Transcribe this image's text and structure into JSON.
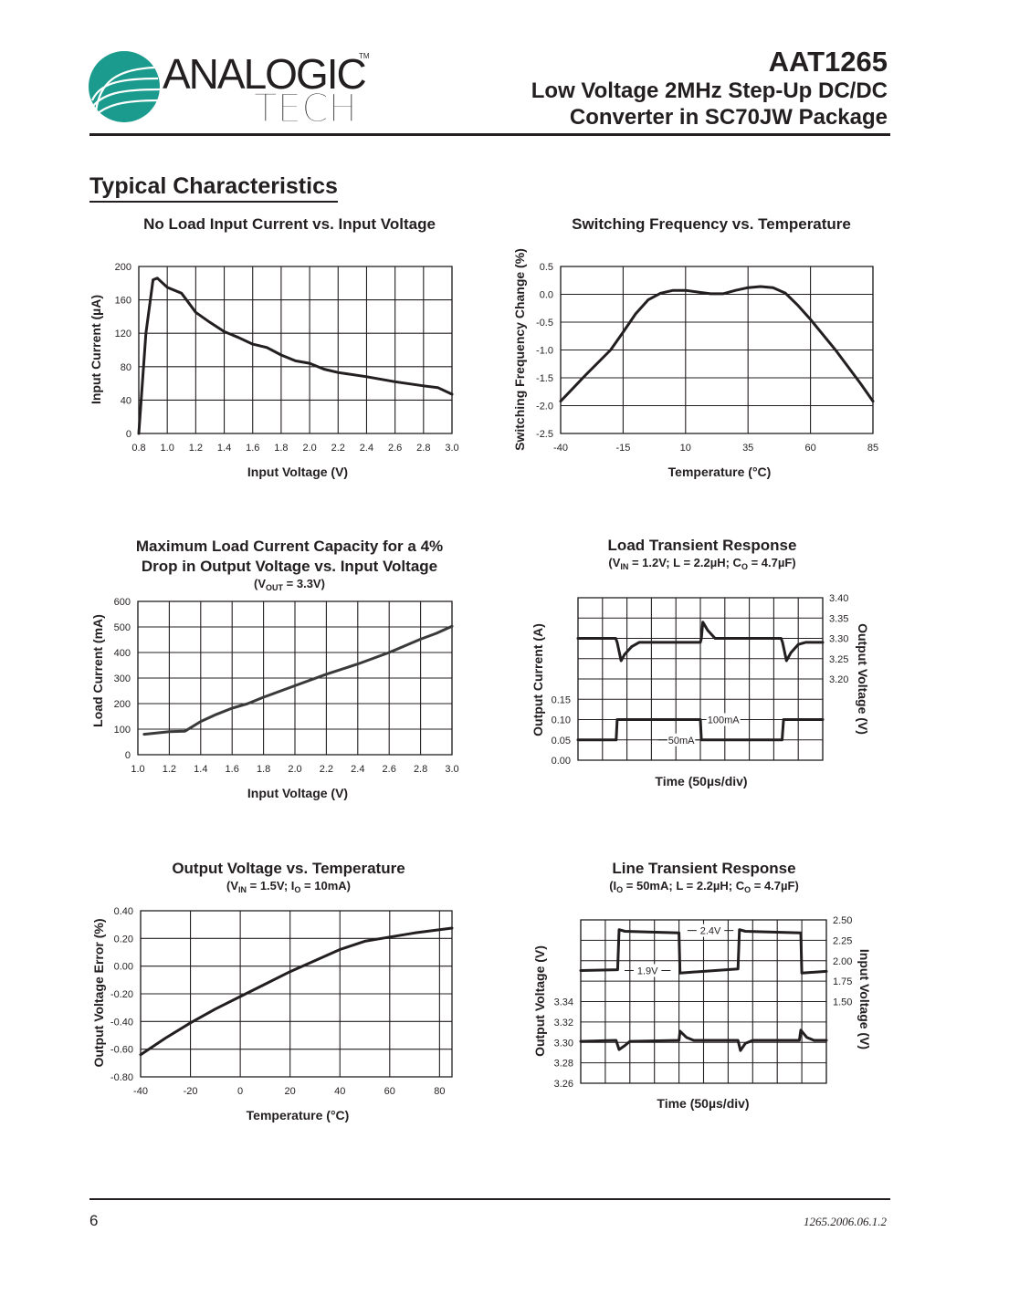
{
  "header": {
    "logo_text": [
      "ANALOGIC",
      "TECH",
      "TM"
    ],
    "logo_color": "#1b9b8d",
    "part_number": "AAT1265",
    "subtitle_line1": "Low Voltage 2MHz Step-Up DC/DC",
    "subtitle_line2": "Converter in SC70JW Package"
  },
  "section_title": "Typical Characteristics",
  "footer": {
    "page_number": "6",
    "doc_id": "1265.2006.06.1.2"
  },
  "chart_data": [
    {
      "type": "line",
      "title": [
        "No Load Input Current vs. Input Voltage"
      ],
      "subtitle": [],
      "x": {
        "label": "Input Voltage (V)",
        "lim": [
          0.8,
          3.0
        ],
        "ticks": [
          0.8,
          1.0,
          1.2,
          1.4,
          1.6,
          1.8,
          2.0,
          2.2,
          2.4,
          2.6,
          2.8,
          3.0
        ],
        "tick_labels": [
          "0.8",
          "1.0",
          "1.2",
          "1.4",
          "1.6",
          "1.8",
          "2.0",
          "2.2",
          "2.4",
          "2.6",
          "2.8",
          "3.0"
        ]
      },
      "axes": {
        "left": {
          "label": "Input Current (µA)",
          "lim": [
            0,
            200
          ],
          "ticks": [
            0,
            40,
            80,
            120,
            160,
            200
          ],
          "tick_labels": [
            "0",
            "40",
            "80",
            "120",
            "160",
            "200"
          ]
        }
      },
      "grid": true,
      "series": [
        {
          "axis": "left",
          "points": [
            [
              0.8,
              0
            ],
            [
              0.85,
              120
            ],
            [
              0.9,
              184
            ],
            [
              0.93,
              186
            ],
            [
              1.0,
              175
            ],
            [
              1.1,
              168
            ],
            [
              1.2,
              145
            ],
            [
              1.3,
              133
            ],
            [
              1.4,
              122
            ],
            [
              1.5,
              115
            ],
            [
              1.6,
              107
            ],
            [
              1.7,
              103
            ],
            [
              1.8,
              94
            ],
            [
              1.9,
              87
            ],
            [
              2.0,
              84
            ],
            [
              2.1,
              77
            ],
            [
              2.2,
              73
            ],
            [
              2.4,
              68
            ],
            [
              2.6,
              62
            ],
            [
              2.8,
              57
            ],
            [
              2.9,
              55
            ],
            [
              3.0,
              47
            ]
          ]
        }
      ],
      "annotations": []
    },
    {
      "type": "line",
      "title": [
        "Switching Frequency vs. Temperature"
      ],
      "subtitle": [],
      "x": {
        "label": "Temperature (°C)",
        "lim": [
          -40,
          85
        ],
        "ticks": [
          -40,
          -15,
          10,
          35,
          60,
          85
        ],
        "tick_labels": [
          "-40",
          "-15",
          "10",
          "35",
          "60",
          "85"
        ]
      },
      "axes": {
        "left": {
          "label": "Switching Frequency Change (%)",
          "lim": [
            -2.5,
            0.5
          ],
          "ticks": [
            -2.5,
            -2.0,
            -1.5,
            -1.0,
            -0.5,
            0.0,
            0.5
          ],
          "tick_labels": [
            "-2.5",
            "-2.0",
            "-1.5",
            "-1.0",
            "-0.5",
            "0.0",
            "0.5"
          ]
        }
      },
      "grid": true,
      "series": [
        {
          "axis": "left",
          "points": [
            [
              -40,
              -1.92
            ],
            [
              -30,
              -1.45
            ],
            [
              -20,
              -1.0
            ],
            [
              -15,
              -0.68
            ],
            [
              -10,
              -0.35
            ],
            [
              -5,
              -0.1
            ],
            [
              0,
              0.02
            ],
            [
              5,
              0.07
            ],
            [
              10,
              0.07
            ],
            [
              15,
              0.04
            ],
            [
              20,
              0.01
            ],
            [
              25,
              0.01
            ],
            [
              30,
              0.07
            ],
            [
              35,
              0.12
            ],
            [
              40,
              0.14
            ],
            [
              45,
              0.12
            ],
            [
              50,
              0.02
            ],
            [
              55,
              -0.2
            ],
            [
              60,
              -0.45
            ],
            [
              70,
              -1.0
            ],
            [
              80,
              -1.6
            ],
            [
              85,
              -1.92
            ]
          ]
        }
      ],
      "annotations": []
    },
    {
      "type": "line",
      "title": [
        "Maximum Load Current Capacity for a 4%",
        "Drop in Output Voltage vs. Input Voltage"
      ],
      "subtitle": [
        {
          "t": "(V"
        },
        {
          "sub": "OUT"
        },
        {
          "t": " = 3.3V)"
        }
      ],
      "x": {
        "label": "Input Voltage (V)",
        "lim": [
          1.0,
          3.0
        ],
        "ticks": [
          1.0,
          1.2,
          1.4,
          1.6,
          1.8,
          2.0,
          2.2,
          2.4,
          2.6,
          2.8,
          3.0
        ],
        "tick_labels": [
          "1.0",
          "1.2",
          "1.4",
          "1.6",
          "1.8",
          "2.0",
          "2.2",
          "2.4",
          "2.6",
          "2.8",
          "3.0"
        ]
      },
      "axes": {
        "left": {
          "label": "Load Current (mA)",
          "lim": [
            0,
            600
          ],
          "ticks": [
            0,
            100,
            200,
            300,
            400,
            500,
            600
          ],
          "tick_labels": [
            "0",
            "100",
            "200",
            "300",
            "400",
            "500",
            "600"
          ]
        }
      },
      "grid": true,
      "series": [
        {
          "axis": "left",
          "color": "#3a3a3a",
          "points": [
            [
              1.04,
              80
            ],
            [
              1.2,
              90
            ],
            [
              1.3,
              92
            ],
            [
              1.4,
              130
            ],
            [
              1.5,
              158
            ],
            [
              1.6,
              182
            ],
            [
              1.7,
              200
            ],
            [
              1.8,
              225
            ],
            [
              2.0,
              270
            ],
            [
              2.2,
              315
            ],
            [
              2.4,
              355
            ],
            [
              2.6,
              400
            ],
            [
              2.8,
              452
            ],
            [
              2.9,
              475
            ],
            [
              3.0,
              503
            ]
          ]
        }
      ],
      "annotations": []
    },
    {
      "type": "line",
      "title": [
        "Load Transient Response"
      ],
      "subtitle": [
        {
          "t": "(V"
        },
        {
          "sub": "IN"
        },
        {
          "t": " = 1.2V; L = 2.2µH; C"
        },
        {
          "sub": "O"
        },
        {
          "t": " = 4.7µF)"
        }
      ],
      "x": {
        "label": "Time (50µs/div)",
        "lim": [
          0,
          500
        ],
        "ticks": [],
        "tick_labels": []
      },
      "axes": {
        "left": {
          "label": "Output Current (A)",
          "lim": [
            0,
            0.4
          ],
          "ticks": [
            0.0,
            0.05,
            0.1,
            0.15
          ],
          "tick_labels": [
            "0.00",
            "0.05",
            "0.10",
            "0.15"
          ]
        },
        "right": {
          "label": "Output Voltage (V)",
          "lim": [
            3.0,
            3.4
          ],
          "ticks": [
            3.2,
            3.25,
            3.3,
            3.35,
            3.4
          ],
          "tick_labels": [
            "3.20",
            "3.25",
            "3.30",
            "3.35",
            "3.40"
          ]
        }
      },
      "grid": {
        "x_divisions": 10,
        "y_divisions": 8
      },
      "series": [
        {
          "axis": "right",
          "points": [
            [
              0,
              3.3
            ],
            [
              77,
              3.3
            ],
            [
              80,
              3.29
            ],
            [
              88,
              3.245
            ],
            [
              95,
              3.26
            ],
            [
              110,
              3.28
            ],
            [
              125,
              3.29
            ],
            [
              250,
              3.29
            ],
            [
              252,
              3.3
            ],
            [
              255,
              3.34
            ],
            [
              265,
              3.32
            ],
            [
              280,
              3.3
            ],
            [
              415,
              3.3
            ],
            [
              418,
              3.29
            ],
            [
              426,
              3.245
            ],
            [
              435,
              3.265
            ],
            [
              450,
              3.285
            ],
            [
              465,
              3.29
            ],
            [
              500,
              3.29
            ]
          ]
        },
        {
          "axis": "left",
          "points": [
            [
              0,
              0.05
            ],
            [
              78,
              0.05
            ],
            [
              80,
              0.1
            ],
            [
              250,
              0.1
            ],
            [
              252,
              0.05
            ],
            [
              417,
              0.05
            ],
            [
              420,
              0.1
            ],
            [
              500,
              0.1
            ]
          ]
        }
      ],
      "annotations": [
        {
          "text": "100mA",
          "x": 297,
          "y": 0.1,
          "axis": "left"
        },
        {
          "text": "50mA",
          "x": 211,
          "y": 0.05,
          "axis": "left"
        }
      ]
    },
    {
      "type": "line",
      "title": [
        "Output Voltage vs. Temperature"
      ],
      "subtitle": [
        {
          "t": "(V"
        },
        {
          "sub": "IN"
        },
        {
          "t": " = 1.5V; I"
        },
        {
          "sub": "O"
        },
        {
          "t": " = 10mA)"
        }
      ],
      "x": {
        "label": "Temperature (°C)",
        "lim": [
          -40,
          85
        ],
        "ticks": [
          -40,
          -20,
          0,
          20,
          40,
          60,
          80
        ],
        "tick_labels": [
          "-40",
          "-20",
          "0",
          "20",
          "40",
          "60",
          "80"
        ]
      },
      "axes": {
        "left": {
          "label": "Output Voltage Error (%)",
          "lim": [
            -0.8,
            0.4
          ],
          "ticks": [
            -0.8,
            -0.6,
            -0.4,
            -0.2,
            0.0,
            0.2,
            0.4
          ],
          "tick_labels": [
            "-0.80",
            "-0.60",
            "-0.40",
            "-0.20",
            "0.00",
            "0.20",
            "0.40"
          ]
        }
      },
      "grid": true,
      "series": [
        {
          "axis": "left",
          "points": [
            [
              -40,
              -0.64
            ],
            [
              -30,
              -0.52
            ],
            [
              -20,
              -0.41
            ],
            [
              -10,
              -0.31
            ],
            [
              0,
              -0.22
            ],
            [
              10,
              -0.13
            ],
            [
              20,
              -0.04
            ],
            [
              30,
              0.04
            ],
            [
              40,
              0.12
            ],
            [
              50,
              0.18
            ],
            [
              60,
              0.21
            ],
            [
              70,
              0.24
            ],
            [
              85,
              0.275
            ]
          ]
        }
      ],
      "annotations": []
    },
    {
      "type": "line",
      "title": [
        "Line Transient Response"
      ],
      "subtitle": [
        {
          "t": "(I"
        },
        {
          "sub": "O"
        },
        {
          "t": " = 50mA; L = 2.2µH; C"
        },
        {
          "sub": "O"
        },
        {
          "t": " = 4.7µF)"
        }
      ],
      "x": {
        "label": "Time (50µs/div)",
        "lim": [
          0,
          500
        ],
        "ticks": [],
        "tick_labels": []
      },
      "axes": {
        "left": {
          "label": "Output Voltage (V)",
          "lim": [
            3.26,
            3.42
          ],
          "ticks": [
            3.26,
            3.28,
            3.3,
            3.32,
            3.34
          ],
          "tick_labels": [
            "3.26",
            "3.28",
            "3.30",
            "3.32",
            "3.34"
          ]
        },
        "right": {
          "label": "Input Voltage (V)",
          "lim": [
            0.5,
            2.5
          ],
          "ticks": [
            1.5,
            1.75,
            2.0,
            2.25,
            2.5
          ],
          "tick_labels": [
            "1.50",
            "1.75",
            "2.00",
            "2.25",
            "2.50"
          ]
        }
      },
      "grid": {
        "x_divisions": 10,
        "y_divisions": 8
      },
      "series": [
        {
          "axis": "right",
          "points": [
            [
              0,
              1.88
            ],
            [
              75,
              1.89
            ],
            [
              78,
              2.38
            ],
            [
              90,
              2.36
            ],
            [
              200,
              2.34
            ],
            [
              202,
              1.85
            ],
            [
              320,
              1.9
            ],
            [
              323,
              2.38
            ],
            [
              335,
              2.36
            ],
            [
              448,
              2.34
            ],
            [
              450,
              1.85
            ],
            [
              500,
              1.87
            ]
          ]
        },
        {
          "axis": "left",
          "points": [
            [
              0,
              3.301
            ],
            [
              72,
              3.302
            ],
            [
              78,
              3.293
            ],
            [
              90,
              3.297
            ],
            [
              100,
              3.301
            ],
            [
              200,
              3.302
            ],
            [
              202,
              3.311
            ],
            [
              215,
              3.305
            ],
            [
              230,
              3.302
            ],
            [
              320,
              3.302
            ],
            [
              325,
              3.292
            ],
            [
              335,
              3.299
            ],
            [
              350,
              3.302
            ],
            [
              445,
              3.302
            ],
            [
              448,
              3.312
            ],
            [
              460,
              3.305
            ],
            [
              475,
              3.302
            ],
            [
              500,
              3.302
            ]
          ]
        }
      ],
      "annotations": [
        {
          "text": "2.4V",
          "x": 264,
          "y": 2.37,
          "axis": "right"
        },
        {
          "text": "1.9V",
          "x": 136,
          "y": 1.88,
          "axis": "right"
        }
      ]
    }
  ]
}
